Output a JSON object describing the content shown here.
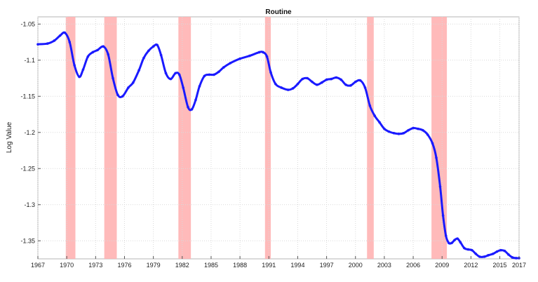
{
  "chart_data": {
    "type": "line",
    "title": "Routine",
    "xlabel": "",
    "ylabel": "Log Value",
    "xlim": [
      1967,
      2017
    ],
    "ylim": [
      -1.375,
      -1.04
    ],
    "grid": true,
    "x_ticks": [
      1967,
      1970,
      1973,
      1976,
      1979,
      1982,
      1985,
      1988,
      1991,
      1994,
      1997,
      2000,
      2003,
      2006,
      2009,
      2012,
      2015,
      2017
    ],
    "y_ticks": [
      -1.05,
      -1.1,
      -1.15,
      -1.2,
      -1.25,
      -1.3,
      -1.35
    ],
    "y_tick_labels": [
      "-1.05",
      "-1.1",
      "-1.15",
      "-1.2",
      "-1.25",
      "-1.3",
      "-1.35"
    ],
    "recessions": [
      {
        "start": 1969.9,
        "end": 1970.9
      },
      {
        "start": 1973.9,
        "end": 1975.2
      },
      {
        "start": 1981.6,
        "end": 1982.9
      },
      {
        "start": 1990.6,
        "end": 1991.2
      },
      {
        "start": 2001.2,
        "end": 2001.9
      },
      {
        "start": 2007.9,
        "end": 2009.5
      }
    ],
    "series": [
      {
        "color": "#1a1aff",
        "recession_color": "#ffb3b3",
        "x": [
          1967,
          1968,
          1968.7,
          1969.3,
          1969.8,
          1970.3,
          1970.8,
          1971.3,
          1971.7,
          1972.2,
          1972.7,
          1973.2,
          1973.8,
          1974.3,
          1974.8,
          1975.3,
          1975.8,
          1976.4,
          1976.9,
          1977.5,
          1978,
          1978.5,
          1979,
          1979.4,
          1979.8,
          1980.3,
          1980.8,
          1981.3,
          1981.7,
          1982.1,
          1982.6,
          1983,
          1983.4,
          1983.8,
          1984.3,
          1984.8,
          1985.3,
          1985.8,
          1986.3,
          1987,
          1988,
          1989,
          1990,
          1990.4,
          1990.8,
          1991.2,
          1991.7,
          1992.3,
          1993,
          1993.5,
          1994,
          1994.5,
          1995,
          1995.5,
          1996,
          1996.5,
          1997,
          1997.5,
          1998,
          1998.5,
          1999,
          1999.5,
          2000,
          2000.5,
          2001,
          2001.5,
          2002,
          2002.5,
          2003,
          2003.5,
          2004,
          2004.5,
          2005,
          2005.5,
          2006,
          2006.5,
          2007,
          2007.5,
          2008,
          2008.4,
          2008.8,
          2009.1,
          2009.4,
          2009.7,
          2010,
          2010.3,
          2010.6,
          2010.9,
          2011.3,
          2011.7,
          2012.1,
          2012.5,
          2012.9,
          2013.4,
          2013.8,
          2014.3,
          2014.7,
          2015.1,
          2015.5,
          2015.9,
          2016.3,
          2016.7,
          2017
        ],
        "y": [
          -1.078,
          -1.077,
          -1.073,
          -1.066,
          -1.062,
          -1.075,
          -1.107,
          -1.123,
          -1.113,
          -1.095,
          -1.089,
          -1.086,
          -1.081,
          -1.092,
          -1.125,
          -1.148,
          -1.15,
          -1.138,
          -1.131,
          -1.114,
          -1.097,
          -1.087,
          -1.081,
          -1.079,
          -1.093,
          -1.118,
          -1.126,
          -1.118,
          -1.12,
          -1.138,
          -1.165,
          -1.168,
          -1.155,
          -1.136,
          -1.122,
          -1.12,
          -1.12,
          -1.116,
          -1.11,
          -1.104,
          -1.098,
          -1.094,
          -1.089,
          -1.089,
          -1.095,
          -1.117,
          -1.133,
          -1.138,
          -1.141,
          -1.139,
          -1.133,
          -1.126,
          -1.125,
          -1.13,
          -1.134,
          -1.131,
          -1.127,
          -1.126,
          -1.124,
          -1.127,
          -1.134,
          -1.135,
          -1.13,
          -1.128,
          -1.138,
          -1.163,
          -1.177,
          -1.186,
          -1.195,
          -1.199,
          -1.201,
          -1.202,
          -1.201,
          -1.197,
          -1.194,
          -1.195,
          -1.197,
          -1.203,
          -1.215,
          -1.235,
          -1.275,
          -1.315,
          -1.343,
          -1.353,
          -1.353,
          -1.349,
          -1.347,
          -1.352,
          -1.36,
          -1.362,
          -1.363,
          -1.368,
          -1.372,
          -1.372,
          -1.37,
          -1.368,
          -1.365,
          -1.363,
          -1.364,
          -1.369,
          -1.373,
          -1.374,
          -1.374
        ]
      }
    ]
  }
}
